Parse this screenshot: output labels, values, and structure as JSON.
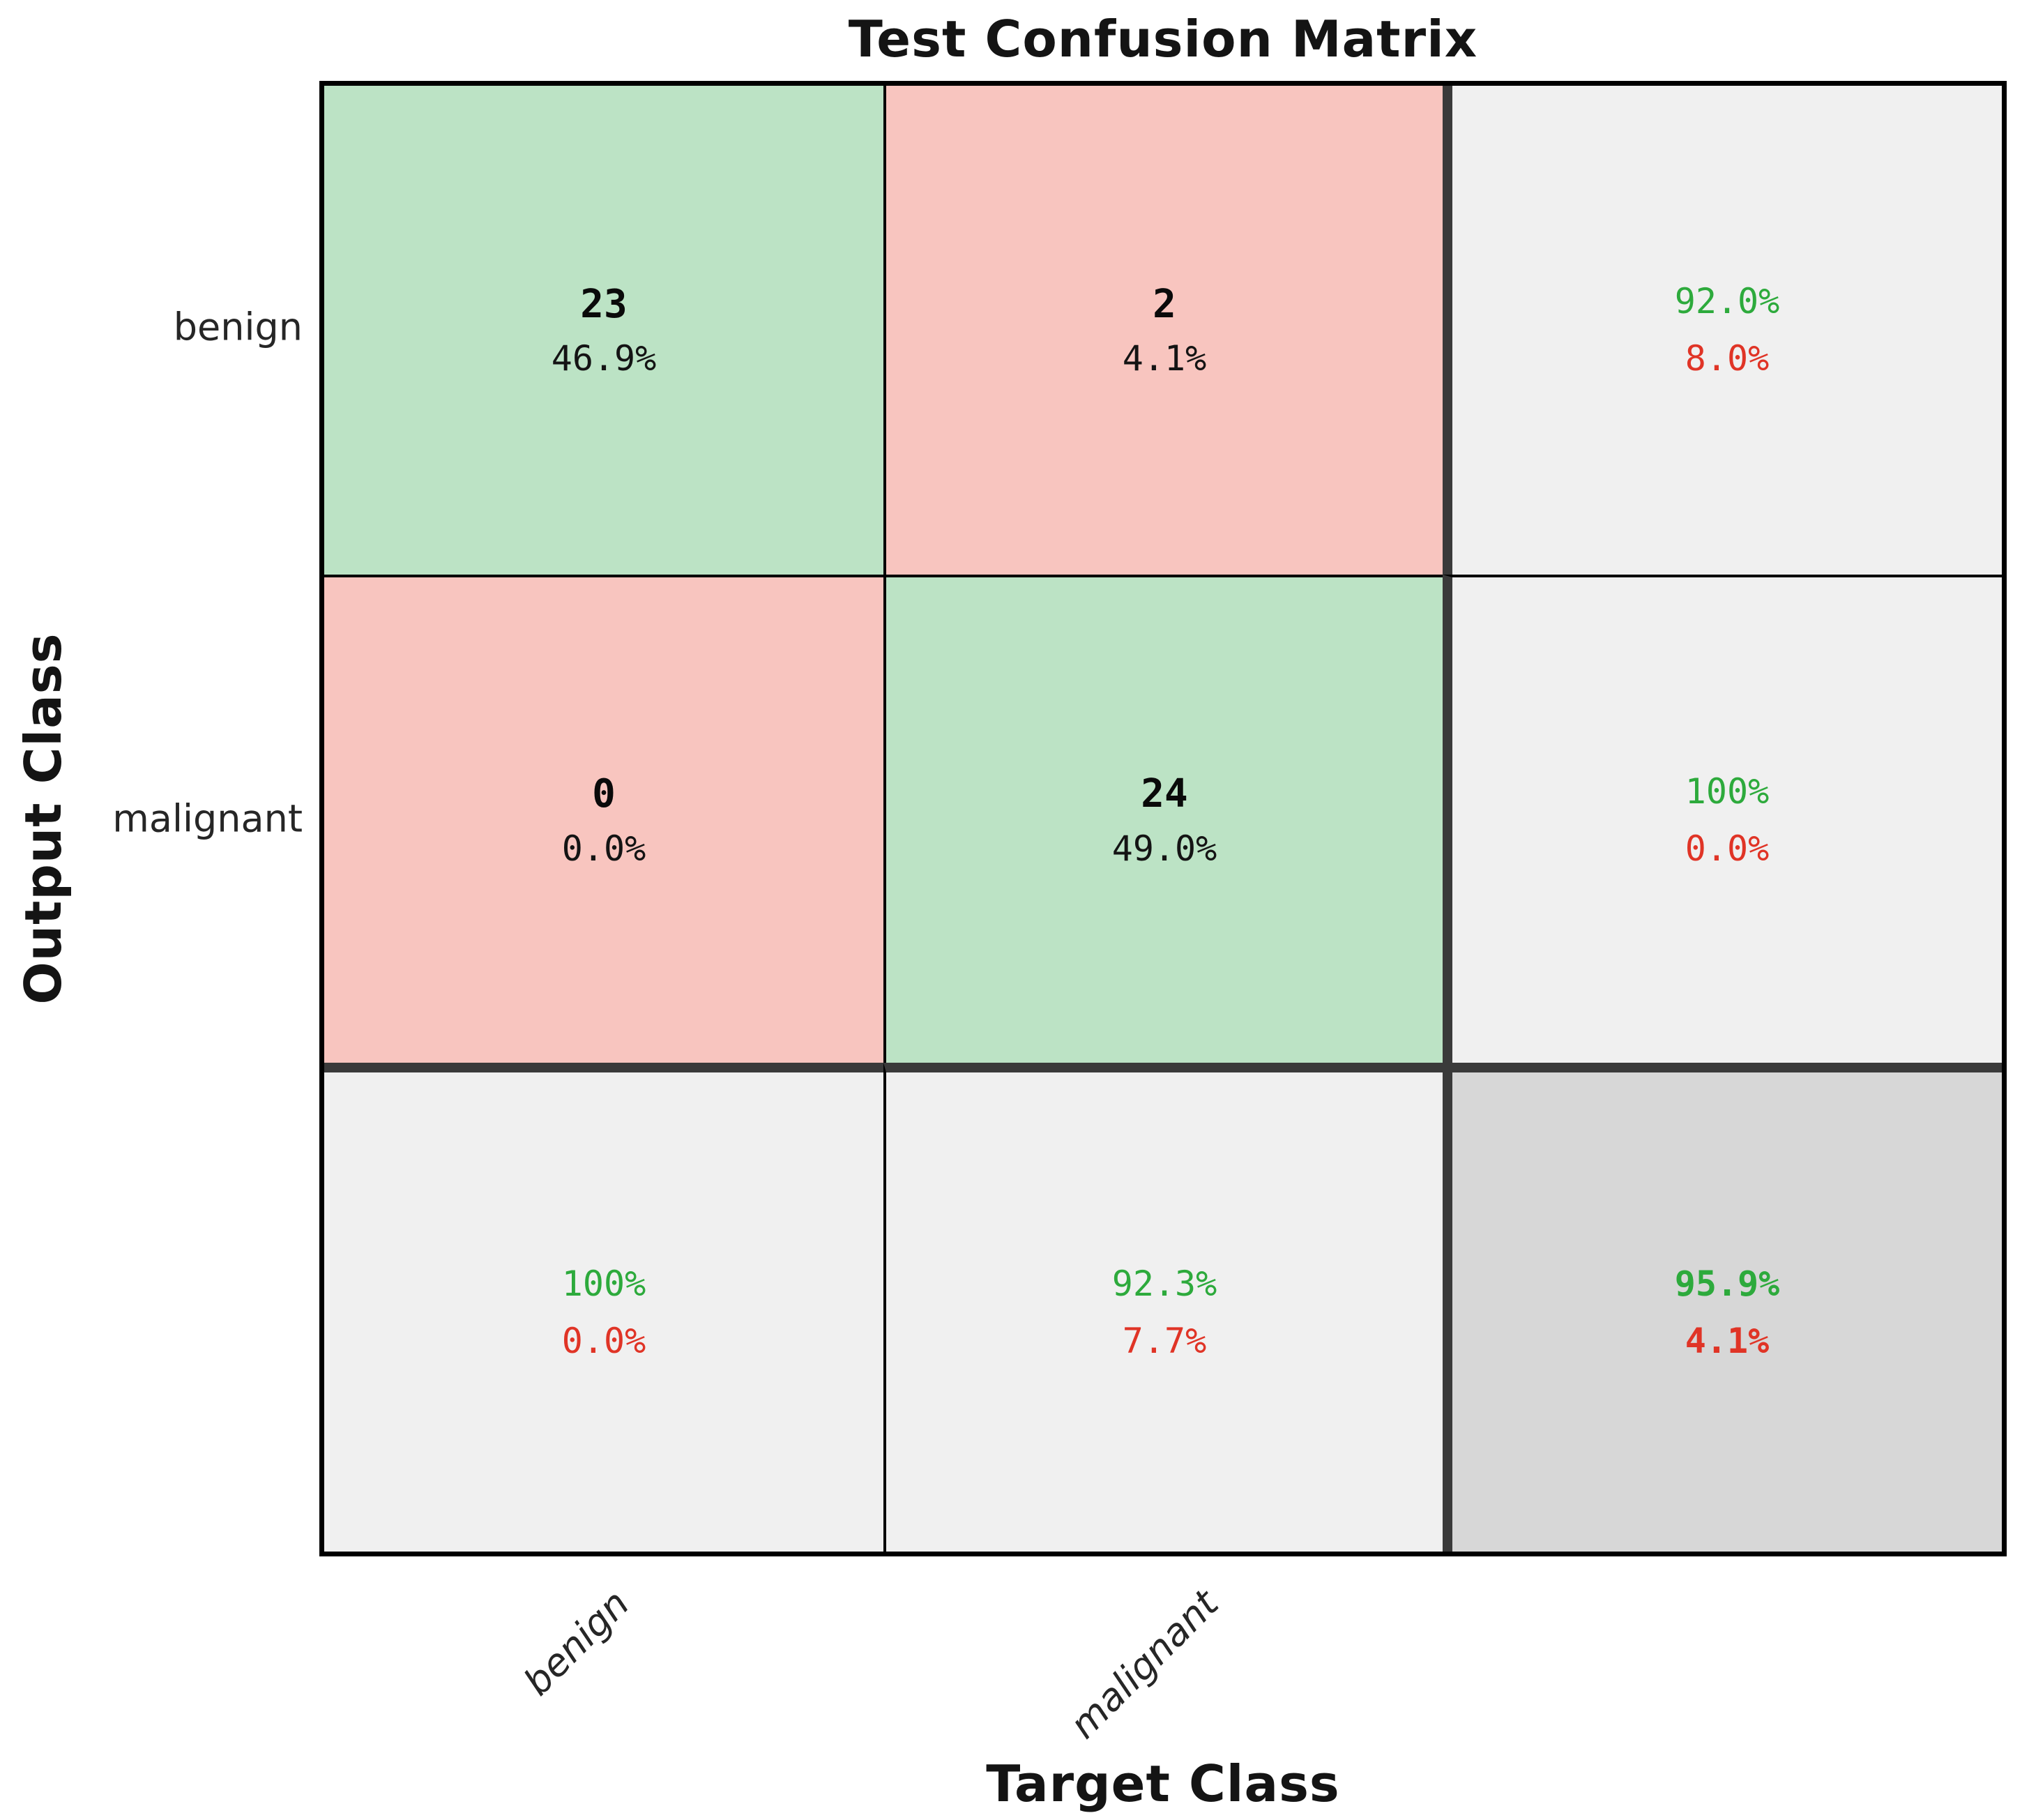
{
  "chart_data": {
    "type": "heatmap",
    "subtype": "confusion-matrix",
    "title": "Test Confusion Matrix",
    "xlabel": "Target Class",
    "ylabel": "Output Class",
    "classes": [
      "benign",
      "malignant"
    ],
    "matrix_counts": [
      [
        23,
        2
      ],
      [
        0,
        24
      ]
    ],
    "matrix_total_pct": [
      [
        "46.9%",
        "4.1%"
      ],
      [
        "0.0%",
        "49.0%"
      ]
    ],
    "row_summary_pct": [
      [
        "92.0%",
        "8.0%"
      ],
      [
        "100%",
        "0.0%"
      ]
    ],
    "col_summary_pct": [
      [
        "100%",
        "0.0%"
      ],
      [
        "92.3%",
        "7.7%"
      ]
    ],
    "overall_pct": [
      "95.9%",
      "4.1%"
    ],
    "grid": "on",
    "legend_position": "none",
    "colors": {
      "correct_cell_bg": "#bce3c5",
      "incorrect_cell_bg": "#f8c5bf",
      "summary_cell_bg": "#f0f0f0",
      "overall_cell_bg": "#d7d7d7",
      "positive_text": "#2daa3c",
      "negative_text": "#e03426",
      "thin_gridline": "#000000",
      "thick_separator": "#3a3a3a"
    }
  }
}
